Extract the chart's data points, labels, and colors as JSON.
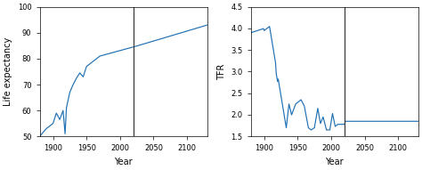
{
  "title": "",
  "left_ylabel": "Life expectancy",
  "right_ylabel": "TFR",
  "xlabel": "Year",
  "xlim": [
    1880,
    2130
  ],
  "xticks": [
    1900,
    1950,
    2000,
    2050,
    2100
  ],
  "left_ylim": [
    50,
    100
  ],
  "left_yticks": [
    50,
    60,
    70,
    80,
    90,
    100
  ],
  "right_ylim": [
    1.5,
    4.5
  ],
  "right_yticks": [
    1.5,
    2.0,
    2.5,
    3.0,
    3.5,
    4.0,
    4.5
  ],
  "vline_x": 2020,
  "line_color": "#2070b4",
  "vline_color": "#333333",
  "bg_color": "#ffffff"
}
